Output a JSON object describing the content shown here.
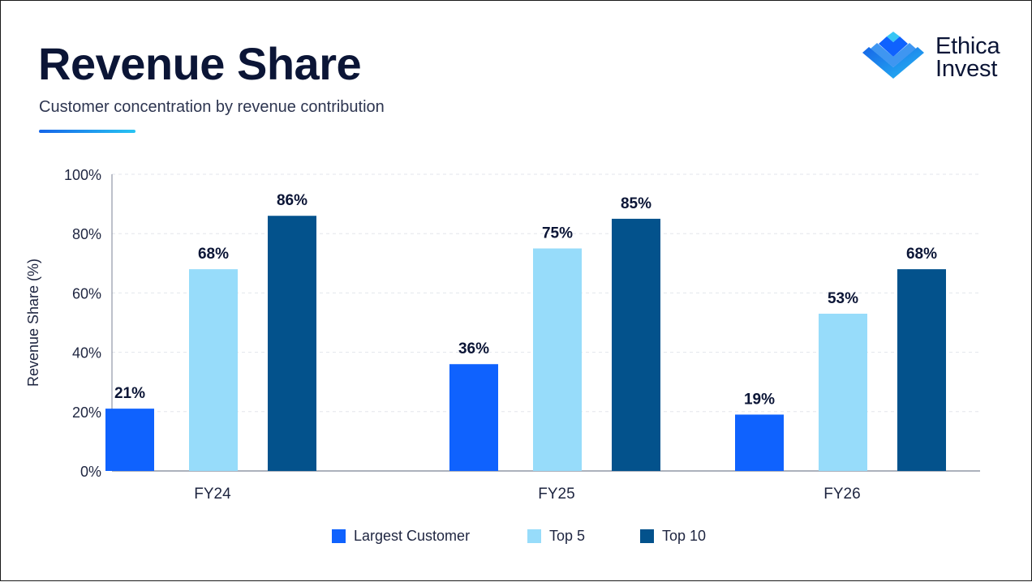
{
  "header": {
    "title": "Revenue Share",
    "subtitle": "Customer concentration by revenue contribution"
  },
  "logo": {
    "line1": "Ethica",
    "line2": "Invest",
    "icon": "ethica-invest-logo-mark"
  },
  "colors": {
    "title": "#0b1536",
    "accent_start": "#1565e8",
    "accent_end": "#28c4f2",
    "grid": "#e3e6ec",
    "axis": "#7b8294"
  },
  "chart_data": {
    "type": "bar",
    "title": "Revenue Share",
    "xlabel": "",
    "ylabel": "Revenue Share (%)",
    "ylim": [
      0,
      100
    ],
    "yticks": [
      0,
      20,
      40,
      60,
      80,
      100
    ],
    "ytick_labels": [
      "0%",
      "20%",
      "40%",
      "60%",
      "80%",
      "100%"
    ],
    "categories": [
      "FY24",
      "FY25",
      "FY26"
    ],
    "grid": true,
    "legend_position": "bottom-center",
    "series": [
      {
        "name": "Largest Customer",
        "color": "#0f62fe",
        "values": [
          21,
          36,
          19
        ],
        "labels": [
          "21%",
          "36%",
          "19%"
        ]
      },
      {
        "name": "Top 5",
        "color": "#97dcfa",
        "values": [
          68,
          75,
          53
        ],
        "labels": [
          "68%",
          "75%",
          "53%"
        ]
      },
      {
        "name": "Top 10",
        "color": "#03528c",
        "values": [
          86,
          85,
          68
        ],
        "labels": [
          "86%",
          "85%",
          "68%"
        ]
      }
    ]
  }
}
